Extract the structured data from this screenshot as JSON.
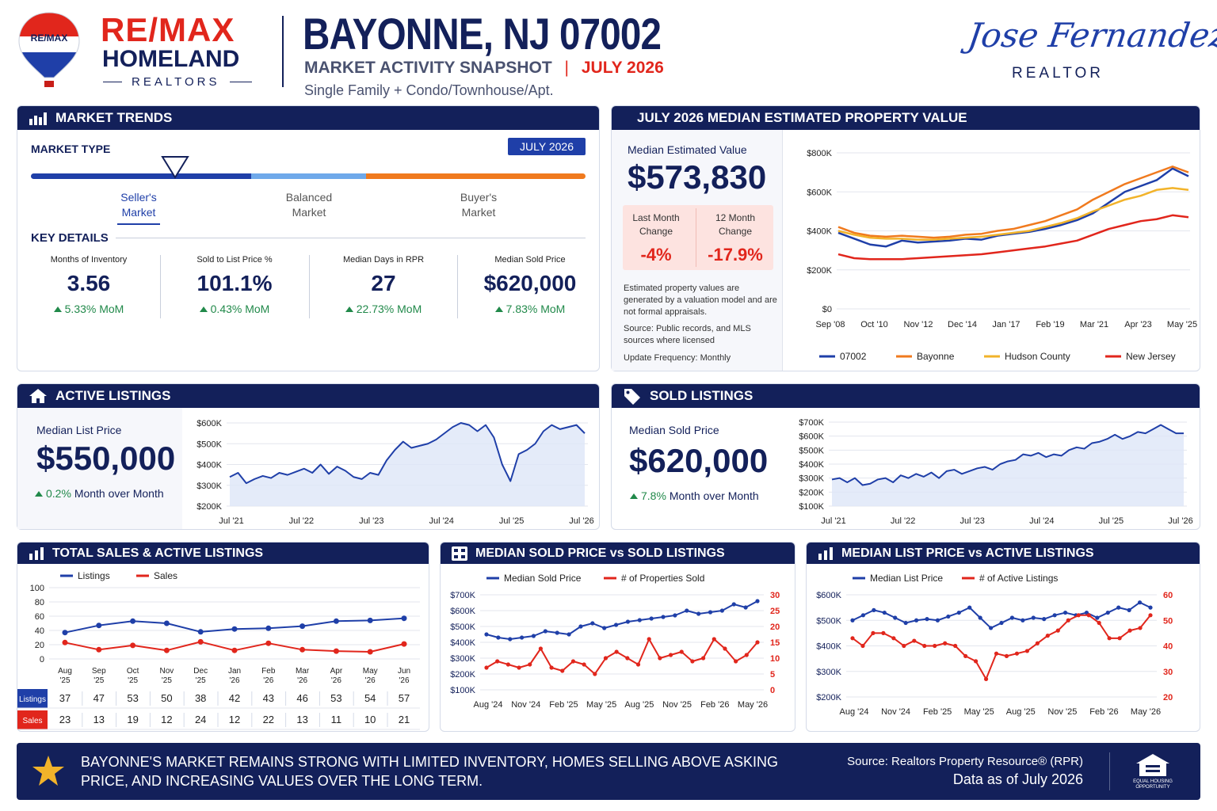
{
  "header": {
    "brand_top": "RE/MAX",
    "brand_mid": "HOMELAND",
    "brand_bot": "REALTORS",
    "balloon_text": "RE/MAX",
    "title": "BAYONNE, NJ 07002",
    "subtitle": "MARKET ACTIVITY SNAPSHOT",
    "sep": "|",
    "period": "JULY 2026",
    "segment": "Single Family + Condo/Townhouse/Apt.",
    "agent_name": "Jose Fernandez",
    "agent_title": "REALTOR"
  },
  "market_trends": {
    "title": "MARKET TRENDS",
    "market_type_label": "MARKET TYPE",
    "badge": "JULY 2026",
    "seller": "Seller's\nMarket",
    "balanced": "Balanced\nMarket",
    "buyer": "Buyer's\nMarket",
    "key_details_label": "KEY DETAILS",
    "details": [
      {
        "title": "Months of Inventory",
        "value": "3.56",
        "change": "5.33% MoM"
      },
      {
        "title": "Sold to List Price %",
        "value": "101.1%",
        "change": "0.43% MoM"
      },
      {
        "title": "Median Days in RPR",
        "value": "27",
        "change": "22.73% MoM"
      },
      {
        "title": "Median Sold Price",
        "value": "$620,000",
        "change": "7.83% MoM"
      }
    ]
  },
  "property_value": {
    "title": "JULY 2026 MEDIAN ESTIMATED PROPERTY VALUE",
    "label": "Median Estimated Value",
    "value": "$573,830",
    "last_month_label": "Last Month\nChange",
    "last_month_value": "-4%",
    "twelve_month_label": "12 Month\nChange",
    "twelve_month_value": "-17.9%",
    "note1": "Estimated property values are generated by a valuation model and are not formal appraisals.",
    "note2": "Source: Public records, and MLS sources where licensed",
    "note3": "Update Frequency: Monthly"
  },
  "active_listings": {
    "title": "ACTIVE LISTINGS",
    "label": "Median List Price",
    "value": "$550,000",
    "change_pct": "0.2%",
    "change_text": "Month over Month"
  },
  "sold_listings": {
    "title": "SOLD LISTINGS",
    "label": "Median Sold Price",
    "value": "$620,000",
    "change_pct": "7.8%",
    "change_text": "Month over Month"
  },
  "total_sales": {
    "title": "TOTAL SALES & ACTIVE LISTINGS",
    "row_listings": "Listings",
    "row_sales": "Sales"
  },
  "median_sold_vs": {
    "title": "MEDIAN SOLD PRICE vs SOLD LISTINGS"
  },
  "median_list_vs": {
    "title": "MEDIAN LIST PRICE vs ACTIVE LISTINGS"
  },
  "footer": {
    "message": "BAYONNE'S MARKET REMAINS STRONG WITH LIMITED INVENTORY, HOMES SELLING ABOVE ASKING PRICE, AND INCREASING VALUES OVER THE LONG TERM.",
    "source": "Source: Realtors Property Resource® (RPR)",
    "asof": "Data as of July 2026",
    "eho": "EQUAL HOUSING OPPORTUNITY"
  },
  "colors": {
    "navy": "#13205a",
    "red": "#e1261c",
    "blue": "#1f3fa8",
    "orange": "#f07a1e",
    "yellow": "#f2b32a",
    "green": "#21894a"
  },
  "chart_data": [
    {
      "id": "pv",
      "type": "line",
      "title": "",
      "y_ticks": [
        "$800K",
        "$600K",
        "$400K",
        "$200K",
        "$0"
      ],
      "ylim": [
        0,
        800000
      ],
      "x_ticks": [
        "Sep '08",
        "Oct '10",
        "Nov '12",
        "Dec '14",
        "Jan '17",
        "Feb '19",
        "Mar '21",
        "Apr '23",
        "May '25"
      ],
      "series": [
        {
          "name": "07002",
          "color": "#1f3fa8",
          "values": [
            390,
            360,
            330,
            320,
            350,
            340,
            345,
            350,
            360,
            355,
            375,
            385,
            395,
            410,
            430,
            455,
            490,
            545,
            600,
            630,
            660,
            720,
            680
          ]
        },
        {
          "name": "Bayonne",
          "color": "#f07a1e",
          "values": [
            420,
            390,
            375,
            370,
            375,
            370,
            365,
            370,
            380,
            385,
            400,
            410,
            430,
            450,
            480,
            510,
            560,
            600,
            640,
            670,
            700,
            730,
            700
          ]
        },
        {
          "name": "Hudson County",
          "color": "#f2b32a",
          "values": [
            400,
            380,
            365,
            360,
            360,
            355,
            355,
            360,
            365,
            370,
            380,
            390,
            400,
            420,
            440,
            465,
            500,
            530,
            560,
            580,
            610,
            620,
            610
          ]
        },
        {
          "name": "New Jersey",
          "color": "#e1261c",
          "values": [
            280,
            260,
            255,
            255,
            255,
            260,
            265,
            270,
            275,
            280,
            290,
            300,
            310,
            320,
            335,
            350,
            380,
            410,
            430,
            450,
            460,
            480,
            470
          ]
        }
      ]
    },
    {
      "id": "active",
      "type": "area",
      "y_ticks": [
        "$600K",
        "$500K",
        "$400K",
        "$300K",
        "$200K"
      ],
      "ylim": [
        200000,
        600000
      ],
      "x_ticks": [
        "Jul '21",
        "Jul '22",
        "Jul '23",
        "Jul '24",
        "Jul '25",
        "Jul '26"
      ],
      "series": [
        {
          "name": "",
          "color": "#1f3fa8",
          "values": [
            340,
            360,
            310,
            330,
            345,
            335,
            360,
            350,
            365,
            380,
            360,
            400,
            355,
            390,
            370,
            340,
            330,
            360,
            350,
            420,
            470,
            510,
            480,
            490,
            500,
            520,
            550,
            580,
            600,
            590,
            560,
            590,
            530,
            400,
            320,
            450,
            470,
            500,
            560,
            590,
            570,
            580,
            590,
            550
          ]
        }
      ]
    },
    {
      "id": "sold",
      "type": "area",
      "y_ticks": [
        "$700K",
        "$600K",
        "$500K",
        "$400K",
        "$300K",
        "$200K",
        "$100K"
      ],
      "ylim": [
        100000,
        700000
      ],
      "x_ticks": [
        "Jul '21",
        "Jul '22",
        "Jul '23",
        "Jul '24",
        "Jul '25",
        "Jul '26"
      ],
      "series": [
        {
          "name": "",
          "color": "#1f3fa8",
          "values": [
            290,
            300,
            270,
            300,
            250,
            260,
            290,
            300,
            270,
            320,
            300,
            330,
            310,
            340,
            300,
            350,
            360,
            330,
            350,
            370,
            380,
            360,
            400,
            420,
            430,
            470,
            460,
            480,
            450,
            470,
            460,
            500,
            520,
            510,
            550,
            560,
            580,
            610,
            580,
            600,
            630,
            620,
            650,
            680,
            650,
            620,
            620
          ]
        }
      ]
    },
    {
      "id": "totals",
      "type": "line",
      "y_ticks": [
        "100",
        "80",
        "60",
        "40",
        "20",
        "0"
      ],
      "ylim": [
        0,
        100
      ],
      "categories": [
        "Aug\n'25",
        "Sep\n'25",
        "Oct\n'25",
        "Nov\n'25",
        "Dec\n'25",
        "Jan\n'26",
        "Feb\n'26",
        "Mar\n'26",
        "Apr\n'26",
        "May\n'26",
        "Jun\n'26"
      ],
      "series": [
        {
          "name": "Listings",
          "color": "#1f3fa8",
          "values": [
            37,
            47,
            53,
            50,
            38,
            42,
            43,
            46,
            53,
            54,
            57
          ]
        },
        {
          "name": "Sales",
          "color": "#e1261c",
          "values": [
            23,
            13,
            19,
            12,
            24,
            12,
            22,
            13,
            11,
            10,
            21
          ]
        }
      ]
    },
    {
      "id": "soldvs",
      "type": "line",
      "y_ticks": [
        "$700K",
        "$600K",
        "$500K",
        "$400K",
        "$300K",
        "$200K",
        "$100K"
      ],
      "ylim": [
        100000,
        700000
      ],
      "y2_ticks": [
        "30",
        "25",
        "20",
        "15",
        "10",
        "5",
        "0"
      ],
      "y2lim": [
        0,
        30
      ],
      "x_ticks": [
        "Aug '24",
        "Nov '24",
        "Feb '25",
        "May '25",
        "Aug '25",
        "Nov '25",
        "Feb '26",
        "May '26"
      ],
      "series": [
        {
          "name": "Median Sold Price",
          "color": "#1f3fa8",
          "axis": "left",
          "values": [
            450,
            430,
            420,
            430,
            440,
            470,
            460,
            450,
            500,
            520,
            490,
            510,
            530,
            540,
            550,
            560,
            570,
            600,
            580,
            590,
            600,
            640,
            620,
            660
          ]
        },
        {
          "name": "# of Properties Sold",
          "color": "#e1261c",
          "axis": "right",
          "values": [
            7,
            9,
            8,
            7,
            8,
            13,
            7,
            6,
            9,
            8,
            5,
            10,
            12,
            10,
            8,
            16,
            10,
            11,
            12,
            9,
            10,
            16,
            13,
            9,
            11,
            15
          ]
        }
      ]
    },
    {
      "id": "listvs",
      "type": "line",
      "y_ticks": [
        "$600K",
        "$500K",
        "$400K",
        "$300K",
        "$200K"
      ],
      "ylim": [
        200000,
        600000
      ],
      "y2_ticks": [
        "60",
        "50",
        "40",
        "30",
        "20"
      ],
      "y2lim": [
        20,
        60
      ],
      "x_ticks": [
        "Aug '24",
        "Nov '24",
        "Feb '25",
        "May '25",
        "Aug '25",
        "Nov '25",
        "Feb '26",
        "May '26"
      ],
      "series": [
        {
          "name": "Median List Price",
          "color": "#1f3fa8",
          "axis": "left",
          "values": [
            500,
            520,
            540,
            530,
            510,
            490,
            500,
            505,
            500,
            515,
            530,
            550,
            510,
            470,
            490,
            510,
            500,
            510,
            505,
            520,
            530,
            520,
            530,
            510,
            530,
            550,
            540,
            570,
            550
          ]
        },
        {
          "name": "# of Active Listings",
          "color": "#e1261c",
          "axis": "right",
          "values": [
            43,
            40,
            45,
            45,
            43,
            40,
            42,
            40,
            40,
            41,
            40,
            36,
            34,
            27,
            37,
            36,
            37,
            38,
            41,
            44,
            46,
            50,
            52,
            52,
            49,
            43,
            43,
            46,
            47,
            52
          ]
        }
      ]
    }
  ]
}
